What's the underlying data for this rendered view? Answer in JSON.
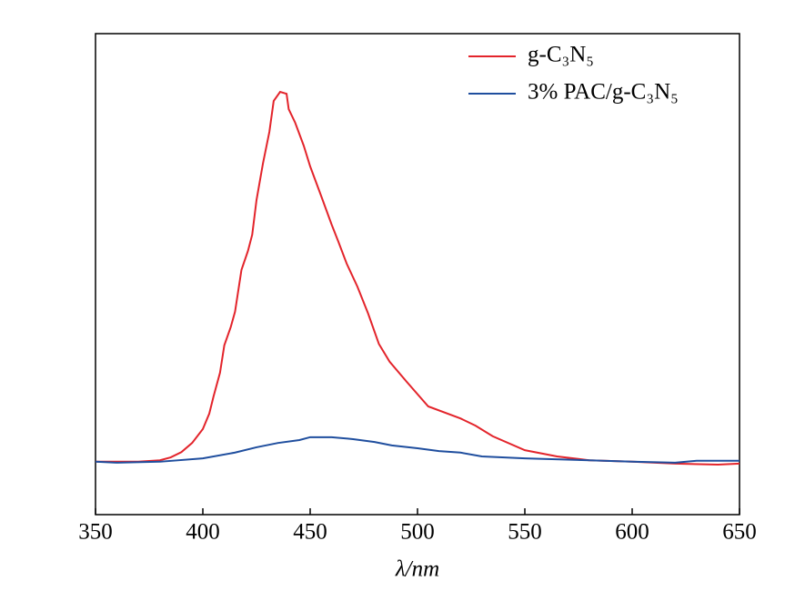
{
  "chart_data": {
    "type": "line",
    "xlabel": "λ/nm",
    "xlim": [
      350,
      650
    ],
    "xticks": [
      350,
      400,
      450,
      500,
      550,
      600,
      650
    ],
    "ylim": [
      0,
      100
    ],
    "legend": "top-right",
    "series": [
      {
        "name": "g-C₃N₅",
        "color": "#e3242b",
        "x": [
          350,
          370,
          380,
          385,
          390,
          395,
          400,
          403,
          405,
          408,
          410,
          413,
          415,
          418,
          421,
          423,
          425,
          428,
          431,
          433,
          436,
          439,
          440,
          443,
          447,
          450,
          455,
          460,
          463,
          467,
          472,
          477,
          482,
          487,
          495,
          505,
          520,
          527,
          535,
          550,
          565,
          580,
          600,
          620,
          640,
          650
        ],
        "values": [
          11.0,
          11.0,
          11.3,
          11.9,
          13.0,
          14.9,
          17.8,
          21.0,
          24.6,
          29.5,
          35.2,
          39.0,
          42.2,
          50.9,
          54.8,
          58.2,
          65.4,
          73.0,
          79.6,
          86.0,
          87.9,
          87.5,
          84.3,
          81.5,
          76.7,
          72.4,
          66.4,
          60.3,
          56.9,
          52.2,
          47.4,
          41.8,
          35.5,
          31.8,
          27.6,
          22.5,
          20.0,
          18.5,
          16.3,
          13.4,
          12.1,
          11.3,
          11.0,
          10.6,
          10.4,
          10.6
        ]
      },
      {
        "name": "3% PAC/g-C₃N₅",
        "color": "#1f4e9e",
        "x": [
          350,
          360,
          380,
          400,
          415,
          425,
          435,
          445,
          450,
          460,
          470,
          480,
          488,
          500,
          510,
          520,
          530,
          550,
          580,
          600,
          620,
          630,
          650
        ],
        "values": [
          11.0,
          10.8,
          11.0,
          11.7,
          12.9,
          14.0,
          14.9,
          15.5,
          16.1,
          16.1,
          15.7,
          15.1,
          14.4,
          13.8,
          13.2,
          12.9,
          12.1,
          11.7,
          11.3,
          11.0,
          10.8,
          11.2,
          11.2
        ]
      }
    ]
  }
}
